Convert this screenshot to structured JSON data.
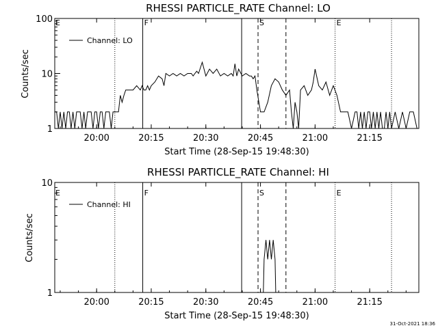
{
  "chart_data": [
    {
      "type": "line",
      "title": "RHESSI PARTICLE_RATE Channel: LO",
      "xlabel": "Start Time (28-Sep-15 19:48:30)",
      "ylabel": "Counts/sec",
      "y_scale": "log",
      "ylim": [
        1,
        100
      ],
      "y_tick_labels": [
        "1",
        "10",
        "100"
      ],
      "xlim": [
        "19:48:30",
        "21:28:30"
      ],
      "x_tick_labels": [
        "20:00",
        "20:15",
        "20:30",
        "20:45",
        "21:00",
        "21:15"
      ],
      "grid": false,
      "legend_position": "top-left",
      "series": [
        {
          "name": "Channel: LO",
          "x": [
            "19:48:30",
            "19:49:00",
            "19:49:30",
            "19:50:00",
            "19:50:30",
            "19:51:00",
            "19:51:30",
            "19:52:00",
            "19:52:30",
            "19:53:00",
            "19:53:30",
            "19:54:00",
            "19:54:30",
            "19:55:00",
            "19:55:30",
            "19:56:00",
            "19:56:30",
            "19:57:00",
            "19:57:30",
            "19:58:00",
            "19:58:30",
            "19:59:00",
            "19:59:30",
            "20:00:00",
            "20:00:30",
            "20:01:00",
            "20:01:30",
            "20:02:00",
            "20:02:30",
            "20:03:00",
            "20:03:30",
            "20:04:00",
            "20:04:30",
            "20:05:00",
            "20:06:00",
            "20:06:30",
            "20:07:00",
            "20:07:30",
            "20:08:00",
            "20:09:00",
            "20:10:00",
            "20:11:00",
            "20:12:00",
            "20:12:30",
            "20:13:00",
            "20:13:30",
            "20:14:00",
            "20:14:30",
            "20:15:00",
            "20:16:00",
            "20:17:00",
            "20:18:00",
            "20:18:30",
            "20:19:00",
            "20:20:00",
            "20:21:00",
            "20:22:00",
            "20:23:00",
            "20:24:00",
            "20:25:00",
            "20:26:00",
            "20:26:30",
            "20:27:00",
            "20:27:30",
            "20:28:00",
            "20:29:00",
            "20:30:00",
            "20:31:00",
            "20:32:00",
            "20:33:00",
            "20:34:00",
            "20:35:00",
            "20:36:00",
            "20:37:00",
            "20:37:30",
            "20:38:00",
            "20:38:30",
            "20:39:00",
            "20:40:00",
            "20:41:00",
            "20:42:00",
            "20:42:30",
            "20:43:00",
            "20:43:30",
            "20:44:00",
            "20:45:00",
            "20:46:00",
            "20:47:00",
            "20:48:00",
            "20:49:00",
            "20:50:00",
            "20:51:00",
            "20:52:00",
            "20:53:00",
            "20:53:30",
            "20:54:00",
            "20:54:30",
            "20:55:00",
            "20:55:30",
            "20:56:00",
            "20:57:00",
            "20:58:00",
            "20:59:00",
            "20:59:30",
            "21:00:00",
            "21:01:00",
            "21:02:00",
            "21:03:00",
            "21:04:00",
            "21:05:00",
            "21:06:00",
            "21:07:00",
            "21:08:00",
            "21:09:00",
            "21:10:00",
            "21:11:00",
            "21:11:30",
            "21:12:00",
            "21:12:30",
            "21:13:00",
            "21:13:30",
            "21:14:00",
            "21:14:30",
            "21:15:00",
            "21:15:30",
            "21:16:00",
            "21:16:30",
            "21:17:00",
            "21:17:30",
            "21:18:00",
            "21:18:30",
            "21:19:00",
            "21:19:30",
            "21:20:00",
            "21:20:30",
            "21:21:00",
            "21:22:00",
            "21:23:00",
            "21:24:00",
            "21:25:00",
            "21:26:00",
            "21:27:00",
            "21:28:00"
          ],
          "y": [
            2,
            2,
            1,
            2,
            1,
            2,
            1,
            2,
            2,
            1,
            2,
            1,
            2,
            2,
            2,
            1,
            2,
            1,
            2,
            2,
            2,
            1,
            2,
            2,
            1,
            2,
            2,
            1,
            2,
            2,
            2,
            1,
            2,
            2,
            2,
            4,
            3,
            4,
            5,
            5,
            5,
            6,
            5,
            6,
            5,
            5,
            6,
            5,
            6,
            7,
            9,
            8,
            6,
            10,
            9,
            10,
            9,
            10,
            9,
            10,
            10,
            9,
            10,
            11,
            10,
            16,
            9,
            12,
            10,
            12,
            9,
            10,
            9,
            10,
            9,
            15,
            9,
            12,
            9,
            10,
            9,
            9,
            8,
            9,
            5,
            2,
            2,
            3,
            6,
            8,
            7,
            5,
            4,
            5,
            2,
            1,
            3,
            2,
            1,
            5,
            6,
            4,
            5,
            7,
            12,
            6,
            5,
            7,
            4,
            6,
            4,
            2,
            2,
            2,
            1,
            2,
            2,
            1,
            2,
            1,
            2,
            1,
            2,
            2,
            1,
            2,
            1,
            2,
            1,
            2,
            1,
            1,
            2,
            1,
            2,
            1,
            2,
            1,
            2,
            1,
            2,
            2,
            1
          ],
          "color": "#000000"
        }
      ]
    },
    {
      "type": "line",
      "title": "RHESSI PARTICLE_RATE Channel: HI",
      "xlabel": "Start Time (28-Sep-15 19:48:30)",
      "ylabel": "Counts/sec",
      "y_scale": "log",
      "ylim": [
        1,
        10
      ],
      "y_tick_labels": [
        "1",
        "10"
      ],
      "xlim": [
        "19:48:30",
        "21:28:30"
      ],
      "x_tick_labels": [
        "20:00",
        "20:15",
        "20:30",
        "20:45",
        "21:00",
        "21:15"
      ],
      "grid": false,
      "legend_position": "top-left",
      "series": [
        {
          "name": "Channel: HI",
          "x": [
            "20:45:48",
            "20:46:00",
            "20:46:30",
            "20:47:00",
            "20:47:30",
            "20:48:00",
            "20:48:30",
            "20:49:00",
            "20:49:12"
          ],
          "y": [
            1,
            2,
            3,
            2,
            3,
            2,
            3,
            2,
            1
          ],
          "color": "#000000"
        }
      ]
    }
  ],
  "phase_markers": [
    {
      "label": "E",
      "time": "20:05:00",
      "style": "dotted"
    },
    {
      "label": "F",
      "time": "20:12:40",
      "style": "solid"
    },
    {
      "label": "",
      "time": "20:39:50",
      "style": "solid"
    },
    {
      "label": "S",
      "time": "20:44:20",
      "style": "dashed"
    },
    {
      "label": "",
      "time": "20:52:00",
      "style": "dashed"
    },
    {
      "label": "E",
      "time": "21:05:30",
      "style": "dotted"
    },
    {
      "label": "",
      "time": "21:21:00",
      "style": "dotted"
    }
  ],
  "footer": {
    "timestamp": "31-Oct-2021 18:36"
  }
}
